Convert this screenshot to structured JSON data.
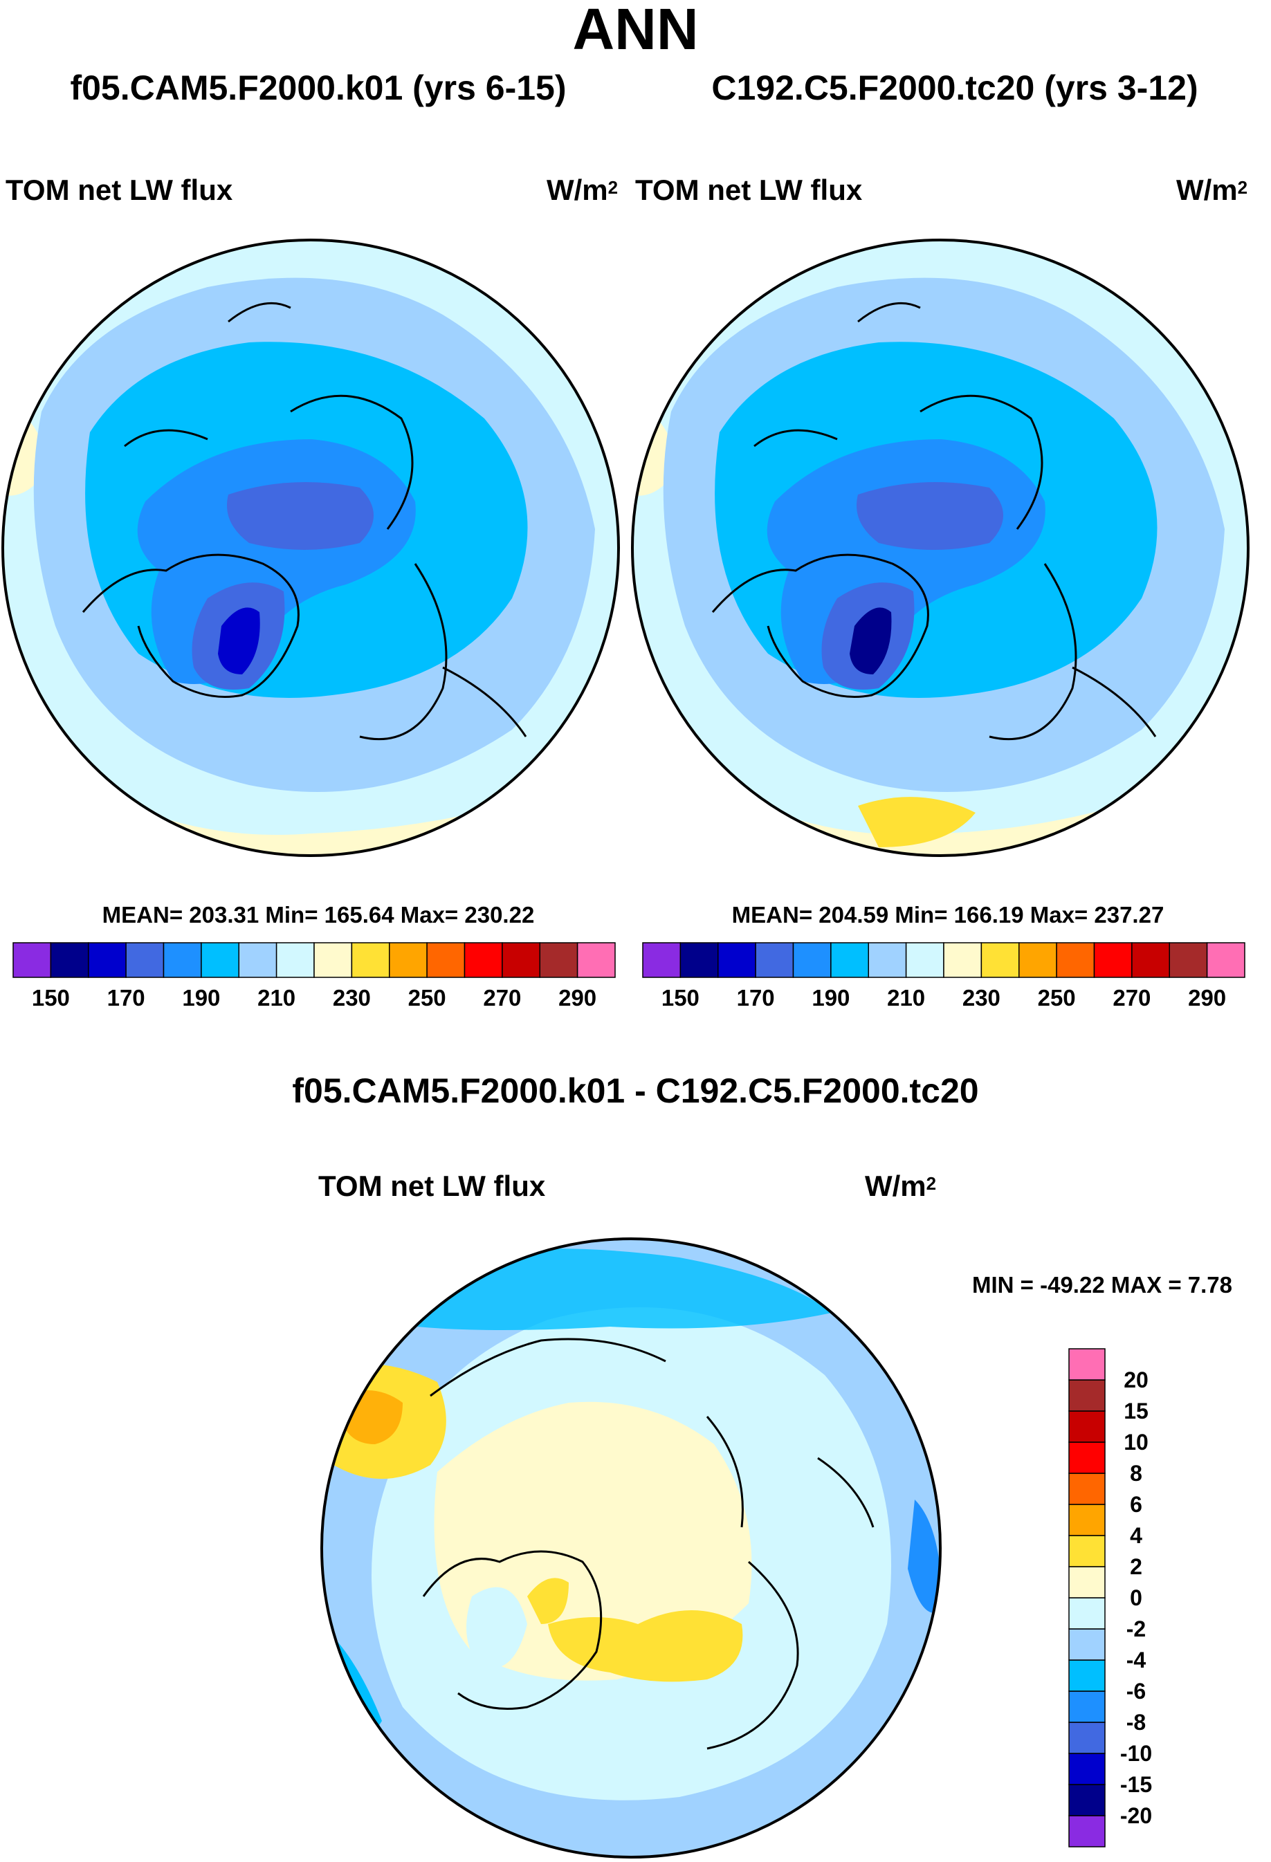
{
  "main_title": "ANN",
  "panels": [
    {
      "title": "f05.CAM5.F2000.k01 (yrs 6-15)",
      "variable": "TOM net LW flux",
      "units_base": "W/m",
      "units_exp": "2",
      "stats_text": "MEAN= 203.31  Min= 165.64  Max= 230.22",
      "mean": 203.31,
      "min": 165.64,
      "max": 230.22
    },
    {
      "title": "C192.C5.F2000.tc20 (yrs 3-12)",
      "variable": "TOM net LW flux",
      "units_base": "W/m",
      "units_exp": "2",
      "stats_text": "MEAN= 204.59  Min= 166.19  Max= 237.27",
      "mean": 204.59,
      "min": 166.19,
      "max": 237.27
    }
  ],
  "diff_panel": {
    "title": "f05.CAM5.F2000.k01 - C192.C5.F2000.tc20",
    "variable": "TOM net LW flux",
    "units_base": "W/m",
    "units_exp": "2",
    "minmax_text": "MIN = -49.22 MAX =   7.78",
    "min": -49.22,
    "max": 7.78
  },
  "abs_colorbar": {
    "colors": [
      "#8a2be2",
      "#00008b",
      "#0000cd",
      "#4169e1",
      "#1e90ff",
      "#00bfff",
      "#a0d2ff",
      "#d2f8ff",
      "#fffacd",
      "#ffe135",
      "#ffa500",
      "#ff6600",
      "#ff0000",
      "#c80000",
      "#a52a2a",
      "#ff6eb4"
    ],
    "tick_labels": [
      "150",
      "170",
      "190",
      "210",
      "230",
      "250",
      "270",
      "290"
    ]
  },
  "diff_colorbar": {
    "colors_bottom_to_top": [
      "#8a2be2",
      "#00008b",
      "#0000cd",
      "#4169e1",
      "#1e90ff",
      "#00bfff",
      "#a0d2ff",
      "#d2f8ff",
      "#fffacd",
      "#ffe135",
      "#ffa500",
      "#ff6600",
      "#ff0000",
      "#c80000",
      "#a52a2a",
      "#ff6eb4"
    ],
    "tick_labels_top_to_bottom": [
      "20",
      "15",
      "10",
      "8",
      "6",
      "4",
      "2",
      "0",
      "-2",
      "-4",
      "-6",
      "-8",
      "-10",
      "-15",
      "-20"
    ]
  }
}
